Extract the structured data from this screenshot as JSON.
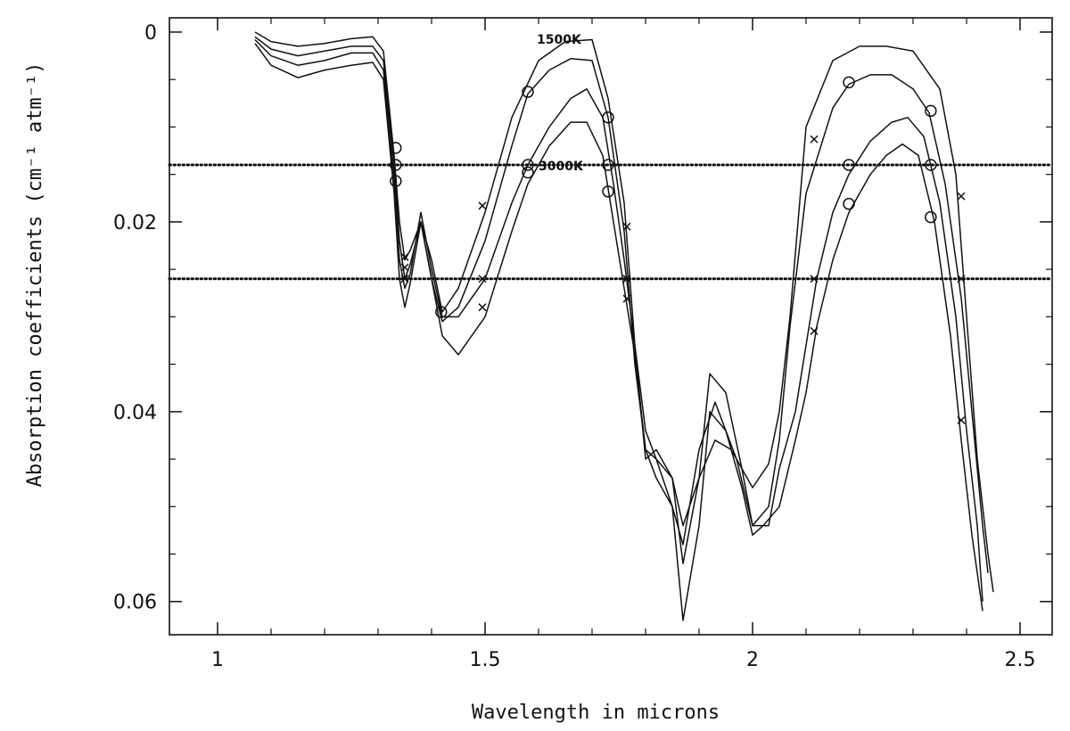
{
  "chart_data": {
    "type": "line",
    "title": "",
    "xlabel": "Wavelength in microns",
    "ylabel": "Absorption coefficients (cm⁻¹ atm⁻¹)",
    "xlim": [
      0.91,
      2.56
    ],
    "ylim": [
      0.0635,
      -0.0015
    ],
    "y_inverted": true,
    "grid": false,
    "x_ticks": [
      1,
      1.5,
      2,
      2.5
    ],
    "x_tick_labels": [
      "1",
      "1.5",
      "2",
      "2.5"
    ],
    "y_ticks": [
      0,
      0.02,
      0.04,
      0.06
    ],
    "y_tick_labels": [
      "0",
      "0.02",
      "0.04",
      "0.06"
    ],
    "annotations": [
      {
        "text": "1500K",
        "x": 1.66,
        "y": -0.0005
      },
      {
        "text": "3000K",
        "x": 1.655,
        "y": 0.0129
      }
    ],
    "reference_lines": [
      {
        "y": 0.014,
        "style": "dotted"
      },
      {
        "y": 0.026,
        "style": "dotted"
      }
    ],
    "series": [
      {
        "x": [
          1.07,
          1.1,
          1.15,
          1.2,
          1.25,
          1.29,
          1.31,
          1.33,
          1.34,
          1.35,
          1.36,
          1.38,
          1.4,
          1.42,
          1.45,
          1.5,
          1.55,
          1.6,
          1.65,
          1.7,
          1.73,
          1.76,
          1.78,
          1.8,
          1.82,
          1.85,
          1.87,
          1.9,
          1.93,
          1.96,
          2.0,
          2.03,
          2.05,
          2.07,
          2.1,
          2.15,
          2.2,
          2.25,
          2.3,
          2.35,
          2.38,
          2.4,
          2.42,
          2.44,
          2.45
        ],
        "y": [
          0.0,
          0.001,
          0.0015,
          0.0012,
          0.0007,
          0.0005,
          0.002,
          0.013,
          0.02,
          0.024,
          0.023,
          0.02,
          0.024,
          0.0295,
          0.027,
          0.019,
          0.009,
          0.003,
          0.001,
          0.0008,
          0.007,
          0.018,
          0.033,
          0.045,
          0.044,
          0.047,
          0.052,
          0.047,
          0.043,
          0.044,
          0.048,
          0.0455,
          0.04,
          0.03,
          0.01,
          0.003,
          0.0015,
          0.0015,
          0.002,
          0.006,
          0.015,
          0.03,
          0.045,
          0.055,
          0.059
        ]
      },
      {
        "x": [
          1.07,
          1.1,
          1.15,
          1.2,
          1.25,
          1.29,
          1.31,
          1.33,
          1.34,
          1.35,
          1.36,
          1.38,
          1.4,
          1.42,
          1.45,
          1.5,
          1.55,
          1.58,
          1.62,
          1.66,
          1.7,
          1.73,
          1.76,
          1.78,
          1.8,
          1.82,
          1.85,
          1.87,
          1.9,
          1.93,
          1.97,
          2.0,
          2.03,
          2.05,
          2.07,
          2.1,
          2.15,
          2.18,
          2.22,
          2.26,
          2.3,
          2.33,
          2.36,
          2.39,
          2.41,
          2.43,
          2.44
        ],
        "y": [
          0.0005,
          0.0018,
          0.0025,
          0.002,
          0.0015,
          0.0015,
          0.003,
          0.014,
          0.022,
          0.026,
          0.0245,
          0.02,
          0.026,
          0.0305,
          0.029,
          0.022,
          0.012,
          0.0065,
          0.004,
          0.0028,
          0.003,
          0.009,
          0.021,
          0.035,
          0.044,
          0.045,
          0.05,
          0.054,
          0.044,
          0.039,
          0.045,
          0.052,
          0.05,
          0.043,
          0.031,
          0.017,
          0.008,
          0.0055,
          0.0045,
          0.0045,
          0.006,
          0.0085,
          0.016,
          0.028,
          0.04,
          0.052,
          0.057
        ]
      },
      {
        "x": [
          1.07,
          1.1,
          1.15,
          1.2,
          1.25,
          1.29,
          1.31,
          1.33,
          1.34,
          1.35,
          1.36,
          1.38,
          1.4,
          1.42,
          1.45,
          1.5,
          1.55,
          1.58,
          1.62,
          1.66,
          1.69,
          1.72,
          1.74,
          1.76,
          1.78,
          1.8,
          1.82,
          1.85,
          1.87,
          1.9,
          1.92,
          1.95,
          1.98,
          2.0,
          2.03,
          2.05,
          2.08,
          2.1,
          2.12,
          2.15,
          2.18,
          2.22,
          2.26,
          2.29,
          2.32,
          2.35,
          2.38,
          2.4,
          2.42,
          2.43
        ],
        "y": [
          0.0008,
          0.0025,
          0.0035,
          0.003,
          0.0022,
          0.0022,
          0.004,
          0.0155,
          0.024,
          0.027,
          0.0255,
          0.019,
          0.025,
          0.03,
          0.03,
          0.026,
          0.018,
          0.014,
          0.01,
          0.007,
          0.006,
          0.009,
          0.016,
          0.024,
          0.033,
          0.042,
          0.045,
          0.047,
          0.056,
          0.047,
          0.036,
          0.038,
          0.046,
          0.052,
          0.052,
          0.046,
          0.04,
          0.033,
          0.026,
          0.019,
          0.015,
          0.0115,
          0.0095,
          0.009,
          0.011,
          0.018,
          0.03,
          0.042,
          0.052,
          0.06
        ]
      },
      {
        "x": [
          1.07,
          1.1,
          1.15,
          1.2,
          1.25,
          1.29,
          1.31,
          1.33,
          1.34,
          1.35,
          1.36,
          1.38,
          1.4,
          1.42,
          1.45,
          1.5,
          1.55,
          1.58,
          1.62,
          1.66,
          1.69,
          1.72,
          1.74,
          1.76,
          1.78,
          1.8,
          1.82,
          1.85,
          1.87,
          1.9,
          1.92,
          1.95,
          1.98,
          2.0,
          2.02,
          2.05,
          2.08,
          2.1,
          2.12,
          2.15,
          2.18,
          2.22,
          2.25,
          2.28,
          2.31,
          2.34,
          2.37,
          2.39,
          2.41,
          2.43
        ],
        "y": [
          0.0012,
          0.0035,
          0.0048,
          0.004,
          0.0035,
          0.0032,
          0.005,
          0.017,
          0.026,
          0.029,
          0.0265,
          0.02,
          0.026,
          0.032,
          0.034,
          0.03,
          0.021,
          0.016,
          0.012,
          0.0095,
          0.0095,
          0.013,
          0.02,
          0.027,
          0.034,
          0.044,
          0.047,
          0.05,
          0.062,
          0.052,
          0.04,
          0.042,
          0.048,
          0.053,
          0.052,
          0.05,
          0.043,
          0.038,
          0.031,
          0.024,
          0.019,
          0.015,
          0.013,
          0.0118,
          0.013,
          0.02,
          0.032,
          0.043,
          0.053,
          0.061
        ]
      }
    ],
    "markers": {
      "circles": [
        [
          1.333,
          0.0122
        ],
        [
          1.333,
          0.014
        ],
        [
          1.333,
          0.0157
        ],
        [
          1.418,
          0.0295
        ],
        [
          1.58,
          0.0063
        ],
        [
          1.58,
          0.014
        ],
        [
          1.58,
          0.0148
        ],
        [
          1.73,
          0.009
        ],
        [
          1.73,
          0.014
        ],
        [
          1.73,
          0.0168
        ],
        [
          2.18,
          0.0053
        ],
        [
          2.18,
          0.014
        ],
        [
          2.18,
          0.0181
        ],
        [
          2.333,
          0.0083
        ],
        [
          2.333,
          0.014
        ],
        [
          2.333,
          0.0195
        ]
      ],
      "crosses": [
        [
          1.35,
          0.0237
        ],
        [
          1.35,
          0.0248
        ],
        [
          1.35,
          0.026
        ],
        [
          1.495,
          0.0183
        ],
        [
          1.495,
          0.026
        ],
        [
          1.495,
          0.029
        ],
        [
          1.765,
          0.0205
        ],
        [
          1.765,
          0.026
        ],
        [
          1.765,
          0.0281
        ],
        [
          2.115,
          0.0113
        ],
        [
          2.115,
          0.026
        ],
        [
          2.115,
          0.0315
        ],
        [
          2.39,
          0.0173
        ],
        [
          2.39,
          0.026
        ],
        [
          2.39,
          0.0409
        ]
      ]
    }
  }
}
